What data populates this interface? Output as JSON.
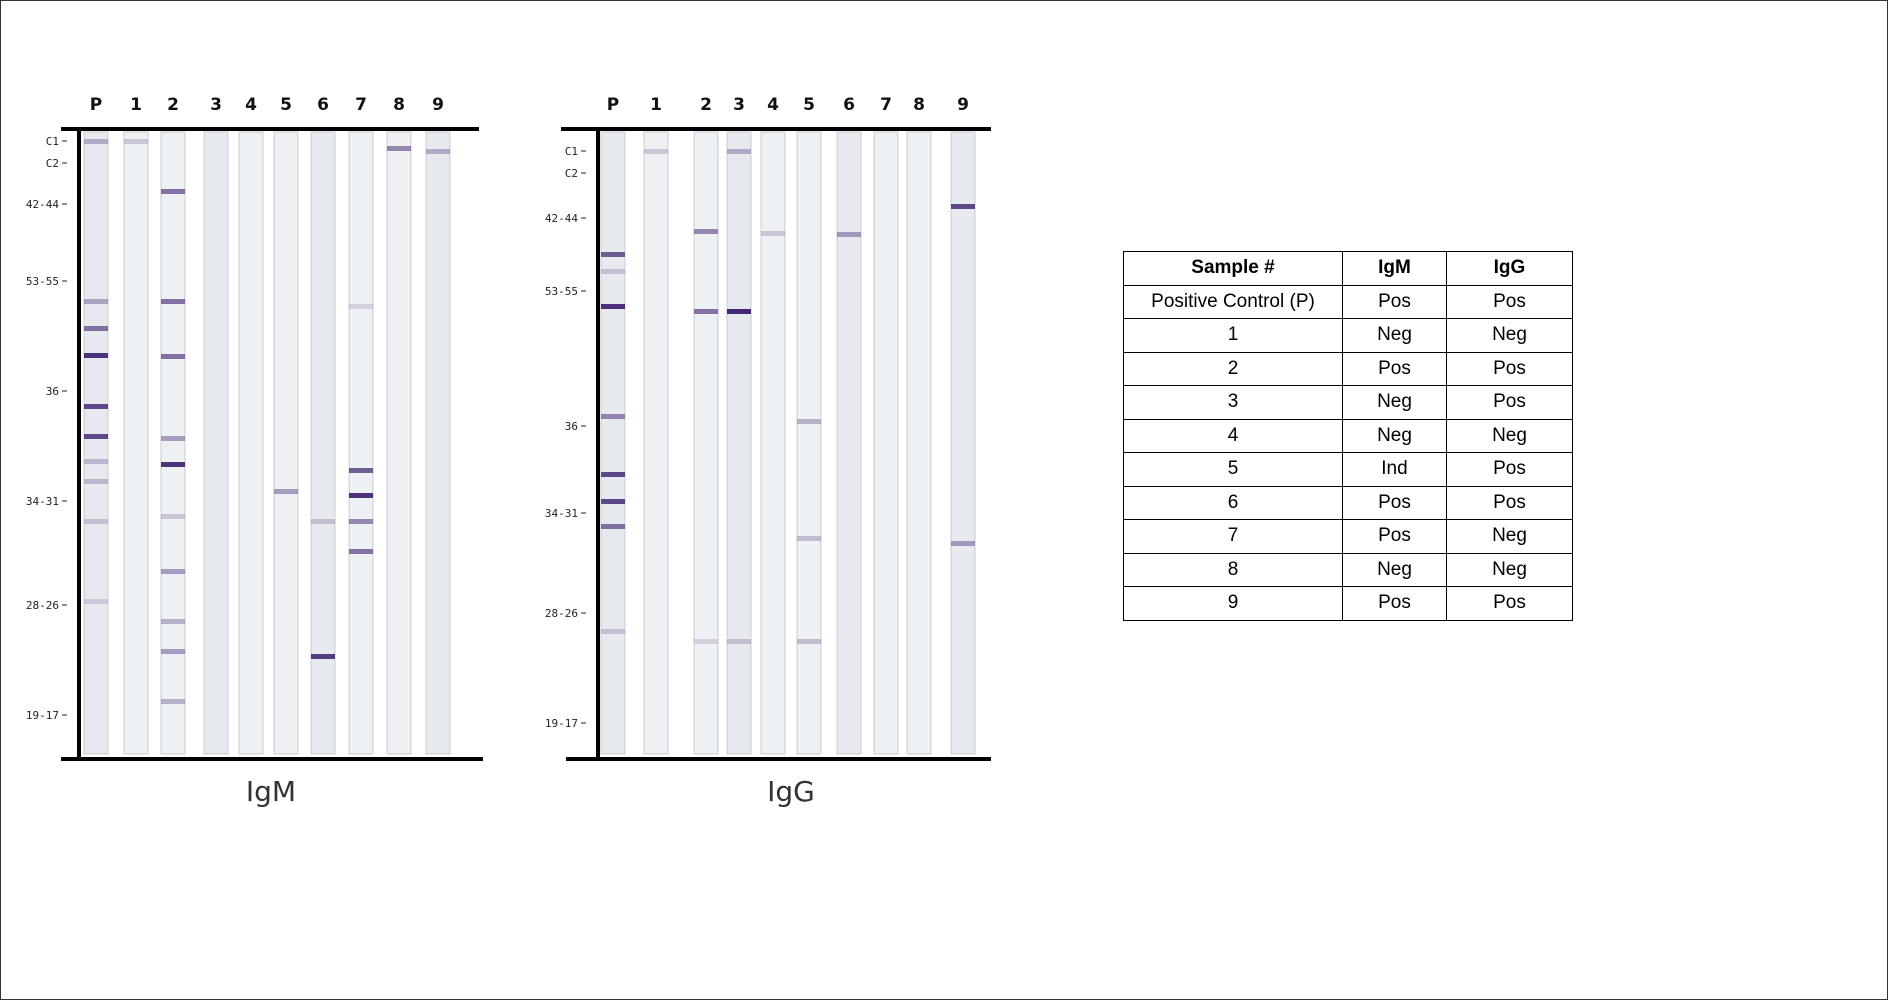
{
  "panels": [
    {
      "title": "IgM",
      "lanes": [
        "P",
        "1",
        "2",
        "3",
        "4",
        "5",
        "6",
        "7",
        "8",
        "9"
      ],
      "markers": [
        "C1",
        "C2",
        "42-44",
        "53-55",
        "36",
        "34-31",
        "28-26",
        "19-17"
      ]
    },
    {
      "title": "IgG",
      "lanes": [
        "P",
        "1",
        "2",
        "3",
        "4",
        "5",
        "6",
        "7",
        "8",
        "9"
      ],
      "markers": [
        "C1",
        "C2",
        "42-44",
        "53-55",
        "36",
        "34-31",
        "28-26",
        "19-17"
      ]
    }
  ],
  "table": {
    "header": [
      "Sample #",
      "IgM",
      "IgG"
    ],
    "rows": [
      [
        "Positive Control (P)",
        "Pos",
        "Pos"
      ],
      [
        "1",
        "Neg",
        "Neg"
      ],
      [
        "2",
        "Pos",
        "Pos"
      ],
      [
        "3",
        "Neg",
        "Pos"
      ],
      [
        "4",
        "Neg",
        "Neg"
      ],
      [
        "5",
        "Ind",
        "Pos"
      ],
      [
        "6",
        "Pos",
        "Pos"
      ],
      [
        "7",
        "Pos",
        "Neg"
      ],
      [
        "8",
        "Neg",
        "Neg"
      ],
      [
        "9",
        "Pos",
        "Pos"
      ]
    ]
  }
}
